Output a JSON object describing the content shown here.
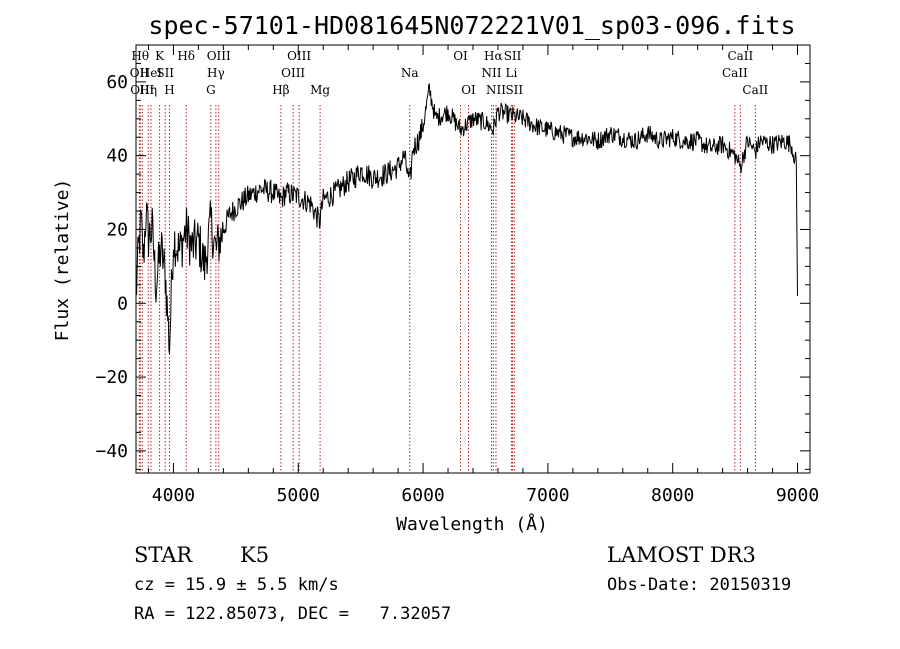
{
  "chart_data": {
    "type": "line",
    "title": "spec-57101-HD081645N072221V01_sp03-096.fits",
    "xlabel": "Wavelength (Å)",
    "ylabel": "Flux (relative)",
    "xlim": [
      3700,
      9100
    ],
    "ylim": [
      -46,
      70
    ],
    "xticks": [
      4000,
      5000,
      6000,
      7000,
      8000,
      9000
    ],
    "xtick_labels": [
      "4000",
      "5000",
      "6000",
      "7000",
      "8000",
      "9000"
    ],
    "yticks": [
      -40,
      -20,
      0,
      20,
      40,
      60
    ],
    "ytick_labels": [
      "−40",
      "−20",
      "0",
      "20",
      "40",
      "60"
    ],
    "grid": false,
    "series": [
      {
        "x": [
          3700,
          3720,
          3740,
          3760,
          3780,
          3800,
          3830,
          3860,
          3900,
          3935,
          3968,
          4000,
          4050,
          4100,
          4150,
          4200,
          4250,
          4300,
          4340,
          4400,
          4450,
          4500,
          4600,
          4700,
          4800,
          4861,
          4900,
          5000,
          5100,
          5170,
          5200,
          5300,
          5400,
          5450,
          5500,
          5600,
          5700,
          5800,
          5850,
          5893,
          5920,
          5960,
          6000,
          6050,
          6100,
          6200,
          6300,
          6400,
          6500,
          6563,
          6600,
          6700,
          6800,
          6900,
          7000,
          7100,
          7200,
          7300,
          7400,
          7500,
          7600,
          7700,
          7800,
          7900,
          8000,
          8100,
          8200,
          8300,
          8400,
          8500,
          8542,
          8600,
          8662,
          8700,
          8800,
          8900,
          8950,
          8990,
          9000
        ],
        "y": [
          2,
          14,
          22,
          12,
          25,
          18,
          20,
          5,
          15,
          8,
          -12,
          18,
          14,
          20,
          15,
          17,
          10,
          22,
          14,
          20,
          24,
          26,
          29,
          31,
          30,
          28,
          30,
          29,
          27,
          22,
          28,
          30,
          33,
          34,
          36,
          34,
          35,
          37,
          40,
          32,
          42,
          44,
          48,
          58,
          50,
          52,
          47,
          50,
          49,
          47,
          52,
          51,
          50,
          48,
          47,
          46,
          45,
          45,
          44,
          46,
          45,
          44,
          46,
          44,
          45,
          44,
          44,
          42,
          43,
          40,
          37,
          44,
          41,
          44,
          43,
          44,
          43,
          38,
          2
        ]
      }
    ],
    "line_markers": [
      {
        "wl": 3734,
        "label": "Hθ",
        "row": 0
      },
      {
        "wl": 3727,
        "label": "OII",
        "row": 1
      },
      {
        "wl": 3750,
        "label": "OIII",
        "row": 2
      },
      {
        "wl": 3798,
        "label": "Hη",
        "row": 2
      },
      {
        "wl": 3820,
        "label": "HeI",
        "row": 1
      },
      {
        "wl": 3889,
        "label": "K",
        "row": 0
      },
      {
        "wl": 3934,
        "label": "SII",
        "row": 1
      },
      {
        "wl": 3968,
        "label": "H",
        "row": 2
      },
      {
        "wl": 4102,
        "label": "Hδ",
        "row": 0
      },
      {
        "wl": 4300,
        "label": "G",
        "row": 2
      },
      {
        "wl": 4340,
        "label": "Hγ",
        "row": 1
      },
      {
        "wl": 4363,
        "label": "OIII",
        "row": 0
      },
      {
        "wl": 4861,
        "label": "Hβ",
        "row": 2
      },
      {
        "wl": 4959,
        "label": "OIII",
        "row": 1
      },
      {
        "wl": 5007,
        "label": "OIII",
        "row": 0
      },
      {
        "wl": 5175,
        "label": "Mg",
        "row": 2
      },
      {
        "wl": 5893,
        "label": "Na",
        "row": 1
      },
      {
        "wl": 6300,
        "label": "OI",
        "row": 0
      },
      {
        "wl": 6364,
        "label": "OI",
        "row": 2
      },
      {
        "wl": 6548,
        "label": "NII",
        "row": 1
      },
      {
        "wl": 6563,
        "label": "Hα",
        "row": 0
      },
      {
        "wl": 6584,
        "label": "NII",
        "row": 2
      },
      {
        "wl": 6708,
        "label": "Li",
        "row": 1
      },
      {
        "wl": 6717,
        "label": "SII",
        "row": 0
      },
      {
        "wl": 6731,
        "label": "SII",
        "row": 2
      },
      {
        "wl": 8498,
        "label": "CaII",
        "row": 1
      },
      {
        "wl": 8542,
        "label": "CaII",
        "row": 0
      },
      {
        "wl": 8662,
        "label": "CaII",
        "row": 2
      }
    ]
  },
  "info": {
    "object_type": "STAR",
    "subclass": "K5",
    "survey": "LAMOST DR3",
    "cz": "cz = 15.9 ± 5.5 km/s",
    "obs_date": "Obs-Date: 20150319",
    "radec": "RA = 122.85073, DEC =   7.32057"
  },
  "colors": {
    "spectrum": "#000000",
    "line_marker": "#b22222",
    "axes": "#000000"
  }
}
